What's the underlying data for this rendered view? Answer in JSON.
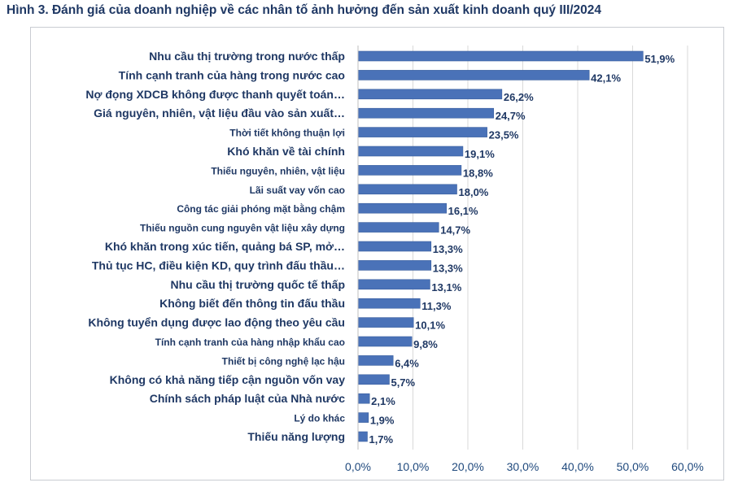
{
  "title": "Hình 3. Đánh giá của doanh nghiệp về các nhân tố ảnh hưởng đến sản xuất kinh doanh quý III/2024",
  "colors": {
    "bar": "#4a72b8",
    "bar_edge": "#3a5f9e",
    "grid": "#d9d9d9",
    "text": "#1f3864"
  },
  "chart_data": {
    "type": "bar",
    "orientation": "horizontal",
    "categories": [
      "Nhu cầu thị trường trong nước thấp",
      "Tính cạnh tranh của hàng trong nước cao",
      "Nợ đọng XDCB không được thanh quyết toán…",
      "Giá nguyên, nhiên, vật liệu đầu vào sản xuất…",
      "Thời tiết không thuận lợi",
      "Khó khăn về tài chính",
      "Thiếu nguyên, nhiên, vật liệu",
      "Lãi suất vay vốn cao",
      "Công tác giải phóng mặt bằng chậm",
      "Thiếu nguồn cung nguyên vật liệu xây dựng",
      "Khó khăn trong xúc tiến, quảng bá SP, mở…",
      "Thủ tục HC, điều kiện KD, quy trình đấu thầu…",
      "Nhu cầu thị trường quốc tế thấp",
      "Không biết đến thông tin đấu thầu",
      "Không tuyển dụng được lao động theo yêu cầu",
      "Tính cạnh tranh của hàng nhập khẩu cao",
      "Thiết bị công nghệ lạc hậu",
      "Không có khả năng tiếp cận nguồn vốn vay",
      "Chính sách pháp luật của Nhà nước",
      "Lý do khác",
      "Thiếu năng lượng"
    ],
    "values": [
      51.9,
      42.1,
      26.2,
      24.7,
      23.5,
      19.1,
      18.8,
      18.0,
      16.1,
      14.7,
      13.3,
      13.3,
      13.1,
      11.3,
      10.1,
      9.8,
      6.4,
      5.7,
      2.1,
      1.9,
      1.7
    ],
    "value_labels": [
      "51,9%",
      "42,1%",
      "26,2%",
      "24,7%",
      "23,5%",
      "19,1%",
      "18,8%",
      "18,0%",
      "16,1%",
      "14,7%",
      "13,3%",
      "13,3%",
      "13,1%",
      "11,3%",
      "10,1%",
      "9,8%",
      "6,4%",
      "5,7%",
      "2,1%",
      "1,9%",
      "1,7%"
    ],
    "xlim": [
      0,
      60
    ],
    "xticks": [
      0,
      10,
      20,
      30,
      40,
      50,
      60
    ],
    "xtick_labels": [
      "0,0%",
      "10,0%",
      "20,0%",
      "30,0%",
      "40,0%",
      "50,0%",
      "60,0%"
    ],
    "grid": true,
    "xlabel": "",
    "ylabel": ""
  }
}
